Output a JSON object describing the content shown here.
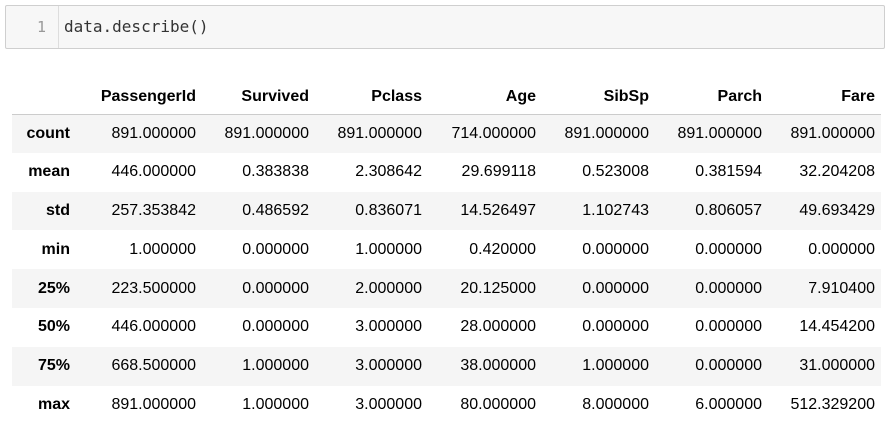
{
  "cell": {
    "line_number": "1",
    "code": "data.describe()"
  },
  "table": {
    "columns": [
      "PassengerId",
      "Survived",
      "Pclass",
      "Age",
      "SibSp",
      "Parch",
      "Fare"
    ],
    "rows": [
      {
        "index": "count",
        "values": [
          "891.000000",
          "891.000000",
          "891.000000",
          "714.000000",
          "891.000000",
          "891.000000",
          "891.000000"
        ]
      },
      {
        "index": "mean",
        "values": [
          "446.000000",
          "0.383838",
          "2.308642",
          "29.699118",
          "0.523008",
          "0.381594",
          "32.204208"
        ]
      },
      {
        "index": "std",
        "values": [
          "257.353842",
          "0.486592",
          "0.836071",
          "14.526497",
          "1.102743",
          "0.806057",
          "49.693429"
        ]
      },
      {
        "index": "min",
        "values": [
          "1.000000",
          "0.000000",
          "1.000000",
          "0.420000",
          "0.000000",
          "0.000000",
          "0.000000"
        ]
      },
      {
        "index": "25%",
        "values": [
          "223.500000",
          "0.000000",
          "2.000000",
          "20.125000",
          "0.000000",
          "0.000000",
          "7.910400"
        ]
      },
      {
        "index": "50%",
        "values": [
          "446.000000",
          "0.000000",
          "3.000000",
          "28.000000",
          "0.000000",
          "0.000000",
          "14.454200"
        ]
      },
      {
        "index": "75%",
        "values": [
          "668.500000",
          "1.000000",
          "3.000000",
          "38.000000",
          "1.000000",
          "0.000000",
          "31.000000"
        ]
      },
      {
        "index": "max",
        "values": [
          "891.000000",
          "1.000000",
          "3.000000",
          "80.000000",
          "8.000000",
          "6.000000",
          "512.329200"
        ]
      }
    ]
  }
}
